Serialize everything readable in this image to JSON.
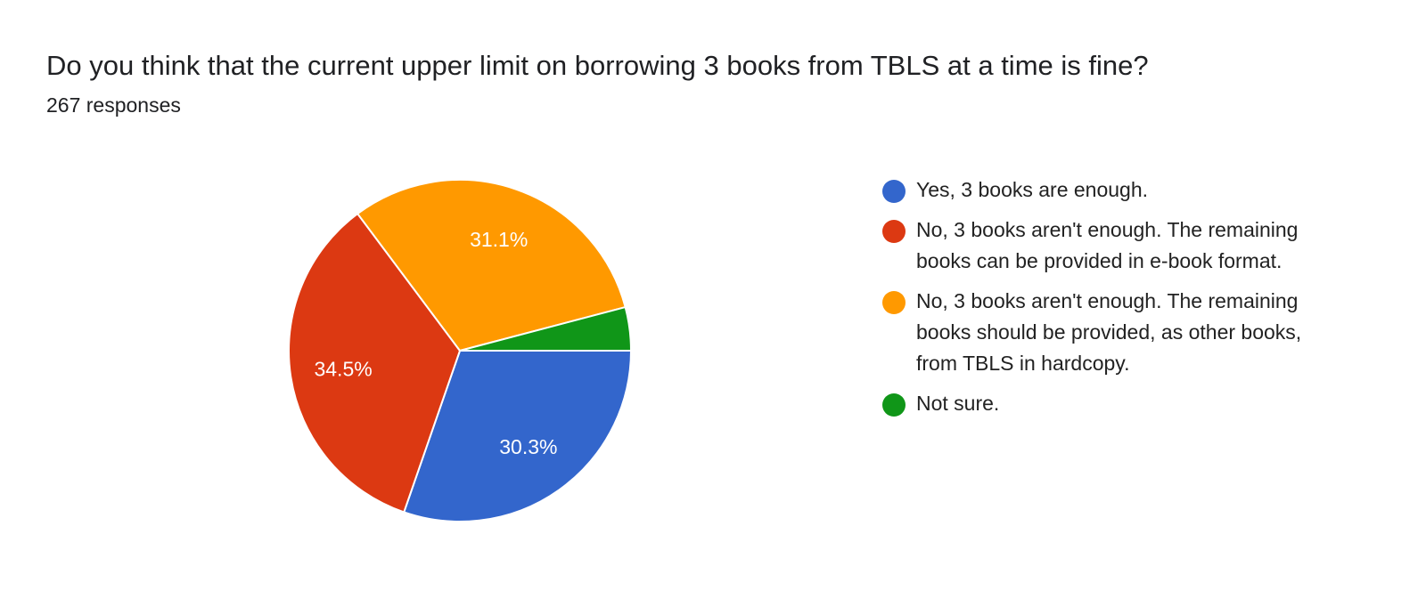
{
  "title": "Do you think that the current upper limit on borrowing 3 books from TBLS at a time is fine?",
  "subtitle": "267 responses",
  "chart_data": {
    "type": "pie",
    "title": "Do you think that the current upper limit on borrowing 3 books from TBLS at a time is fine?",
    "categories": [
      "Yes, 3 books are enough.",
      "No, 3 books aren't enough. The remaining books can be provided in e-book format.",
      "No, 3 books aren't enough. The remaining books should be provided, as other books, from TBLS in hardcopy.",
      "Not sure."
    ],
    "values": [
      30.3,
      34.5,
      31.1,
      4.1
    ],
    "data_labels": [
      "30.3%",
      "34.5%",
      "31.1%",
      ""
    ],
    "colors": [
      "#3366cc",
      "#dc3912",
      "#ff9900",
      "#109618"
    ],
    "legend_position": "right"
  }
}
